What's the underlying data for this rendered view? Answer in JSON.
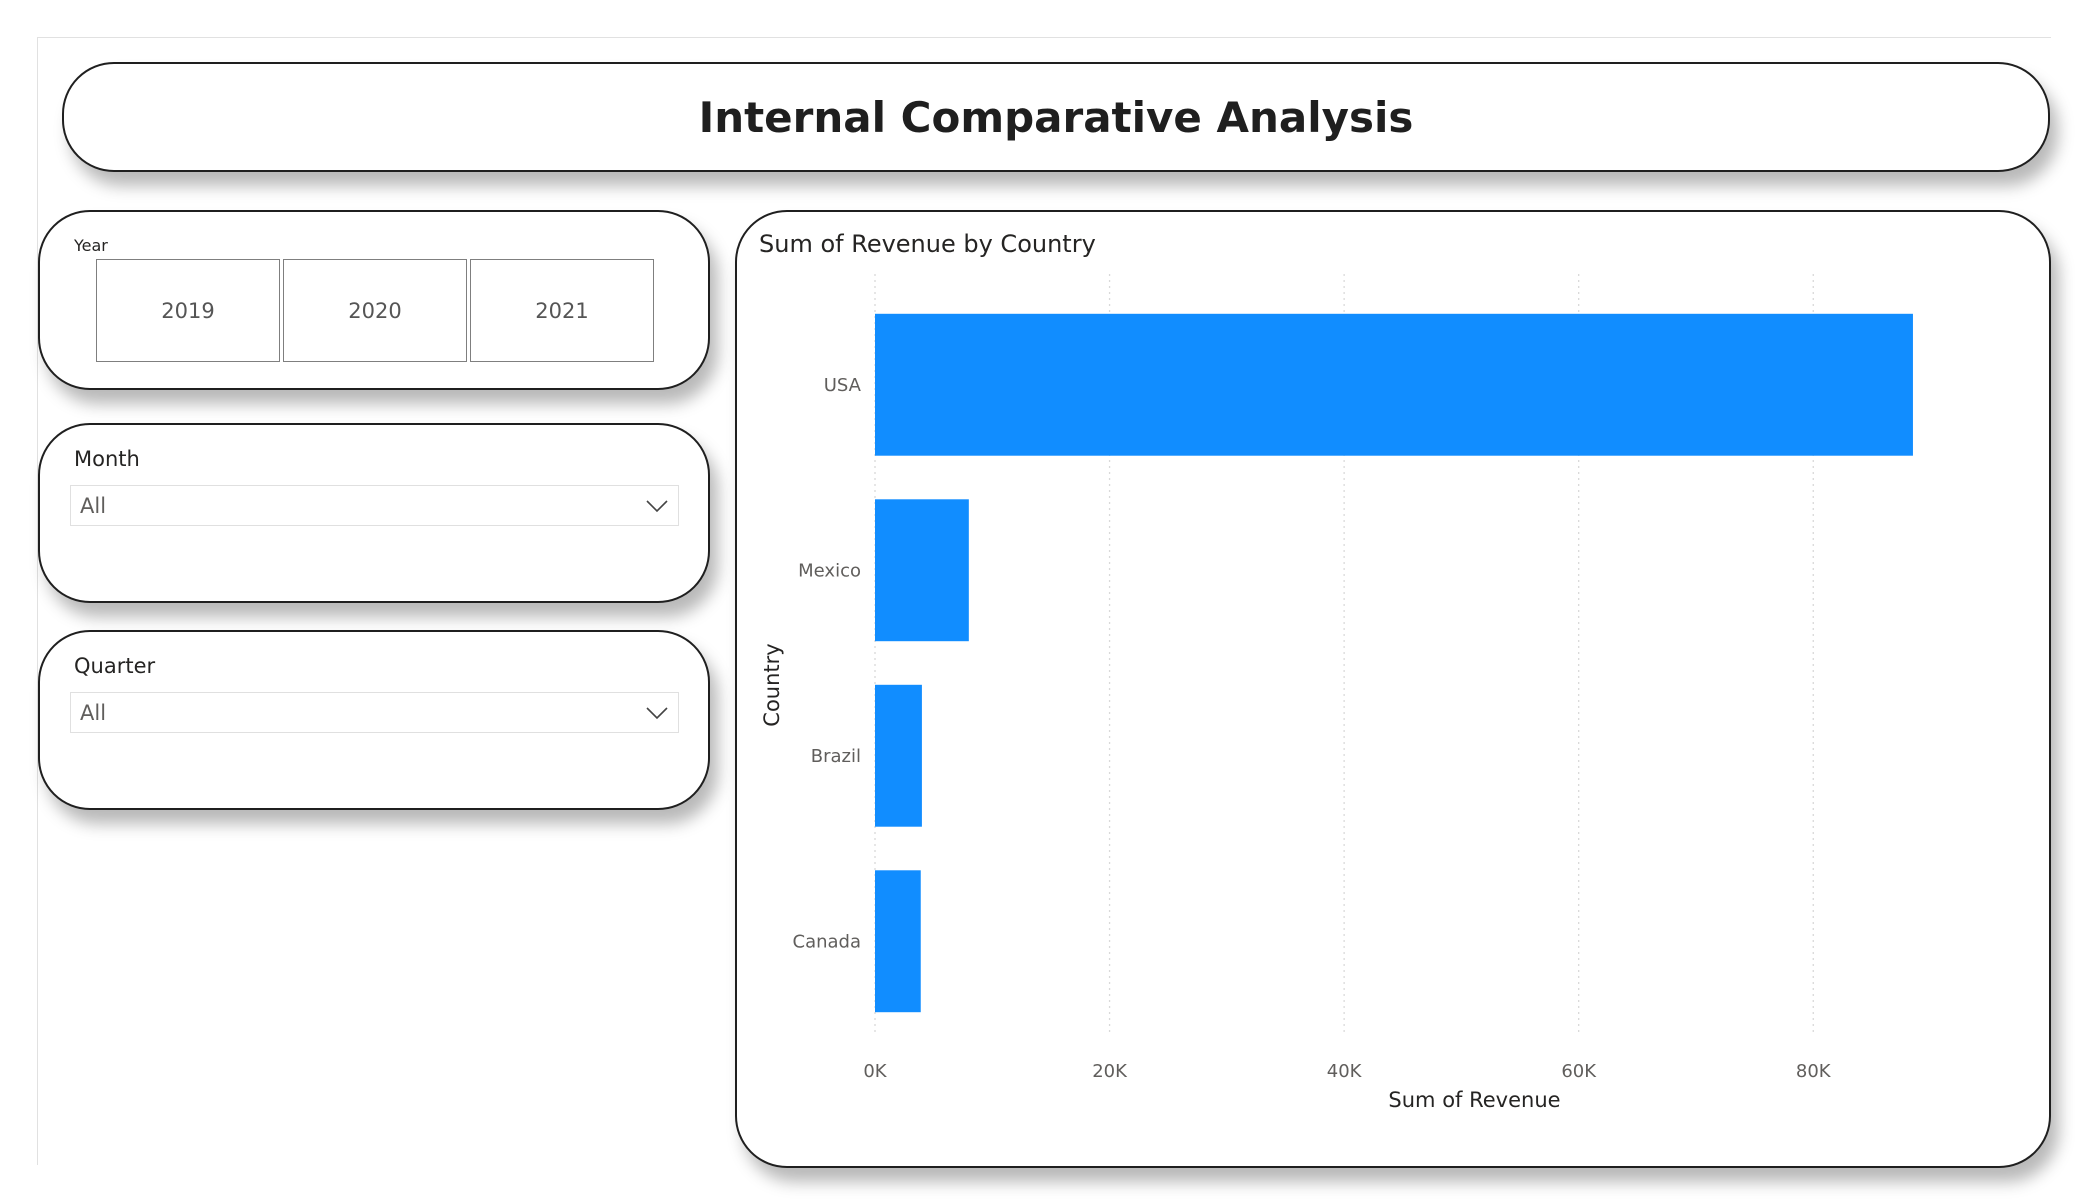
{
  "page": {
    "title": "Internal Comparative Analysis"
  },
  "filters": {
    "year": {
      "label": "Year",
      "options": [
        "2019",
        "2020",
        "2021"
      ]
    },
    "month": {
      "label": "Month",
      "value": "All"
    },
    "quarter": {
      "label": "Quarter",
      "value": "All"
    }
  },
  "colors": {
    "bar": "#118DFF",
    "card_border": "#1f1f1f",
    "gridline": "#d9d9d9",
    "axis_text": "#605e5c"
  },
  "icons": {
    "dropdown": "chevron-down-icon"
  },
  "chart_data": {
    "type": "bar",
    "orientation": "horizontal",
    "title": "Sum of Revenue by Country",
    "xlabel": "Sum of Revenue",
    "ylabel": "Country",
    "categories": [
      "USA",
      "Mexico",
      "Brazil",
      "Canada"
    ],
    "values": [
      88500,
      8000,
      4000,
      3900
    ],
    "xlim": [
      0,
      92000
    ],
    "x_ticks": [
      0,
      20000,
      40000,
      60000,
      80000
    ],
    "x_tick_labels": [
      "0K",
      "20K",
      "40K",
      "60K",
      "80K"
    ],
    "grid": "vertical dotted",
    "legend": "none"
  }
}
